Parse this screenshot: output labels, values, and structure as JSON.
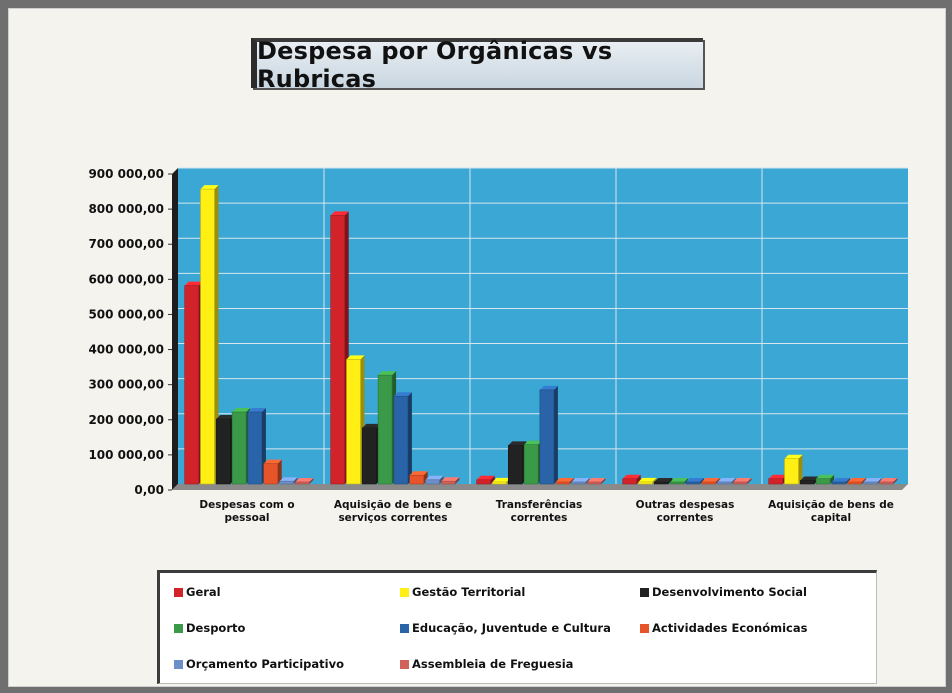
{
  "chart_data": {
    "type": "bar",
    "title": "Despesa por Orgânicas  vs  Rubricas",
    "categories": [
      [
        "Despesas com o",
        "pessoal"
      ],
      [
        "Aquisição de bens e",
        "serviços correntes"
      ],
      [
        "Transferências",
        "correntes"
      ],
      [
        "Outras despesas",
        "correntes"
      ],
      [
        "Aquisição de bens de",
        "capital"
      ]
    ],
    "ylim": [
      0,
      900000
    ],
    "yticks": [
      "0,00",
      "100 000,00",
      "200 000,00",
      "300 000,00",
      "400 000,00",
      "500 000,00",
      "600 000,00",
      "700 000,00",
      "800 000,00",
      "900 000,00"
    ],
    "series": [
      {
        "name": "Geral",
        "color": "#d3232a",
        "values": [
          565000,
          765000,
          12000,
          15000,
          15000
        ]
      },
      {
        "name": "Gestão Territorial",
        "color": "#ffef14",
        "values": [
          840000,
          355000,
          6000,
          6000,
          72000
        ]
      },
      {
        "name": "Desenvolvimento Social",
        "color": "#222222",
        "values": [
          185000,
          160000,
          110000,
          5000,
          10000
        ]
      },
      {
        "name": "Desporto",
        "color": "#3b9a47",
        "values": [
          205000,
          310000,
          112000,
          5000,
          15000
        ]
      },
      {
        "name": "Educação, Juventude e Cultura",
        "color": "#2a64a8",
        "values": [
          205000,
          250000,
          268000,
          5000,
          5000
        ]
      },
      {
        "name": "Actividades Económicas",
        "color": "#e8542a",
        "values": [
          58000,
          25000,
          3000,
          3000,
          3000
        ]
      },
      {
        "name": "Orçamento Participativo",
        "color": "#6d8fc7",
        "values": [
          8000,
          12000,
          3000,
          3000,
          3000
        ]
      },
      {
        "name": "Assembleia de Freguesia",
        "color": "#d0625a",
        "values": [
          5000,
          8000,
          3000,
          3000,
          3000
        ]
      }
    ],
    "grid": true,
    "legend": "bottom"
  }
}
